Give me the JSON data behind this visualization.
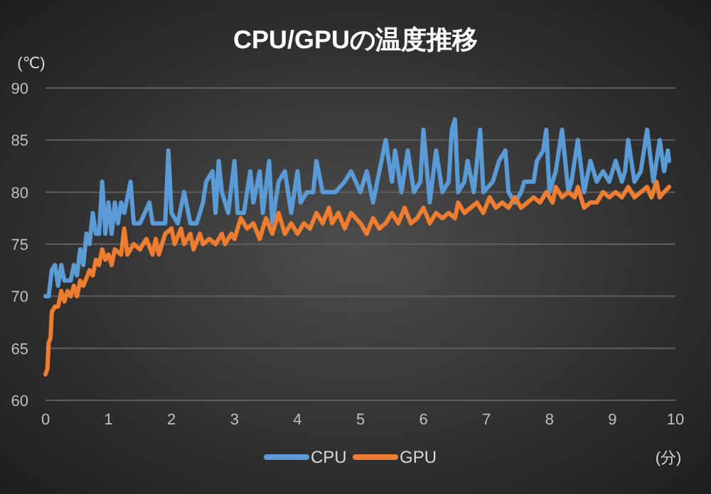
{
  "chart_data": {
    "type": "line",
    "title": "CPU/GPUの温度推移",
    "ylabel": "(℃)",
    "xlabel": "(分)",
    "xlim": [
      0,
      10
    ],
    "xticks": [
      0,
      1,
      2,
      3,
      4,
      5,
      6,
      7,
      8,
      9,
      10
    ],
    "ylim": [
      60,
      90
    ],
    "yticks": [
      60,
      65,
      70,
      75,
      80,
      85,
      90
    ],
    "grid": "y",
    "legend": "bottom",
    "line_style": "solid",
    "series": [
      {
        "name": "CPU",
        "color": "#5b9bd5",
        "x": [
          0,
          0.05,
          0.1,
          0.15,
          0.2,
          0.25,
          0.3,
          0.4,
          0.45,
          0.5,
          0.55,
          0.6,
          0.65,
          0.7,
          0.75,
          0.8,
          0.85,
          0.9,
          0.95,
          1.0,
          1.05,
          1.1,
          1.15,
          1.2,
          1.25,
          1.35,
          1.4,
          1.5,
          1.65,
          1.7,
          1.9,
          1.95,
          2.0,
          2.1,
          2.2,
          2.3,
          2.4,
          2.5,
          2.55,
          2.65,
          2.7,
          2.75,
          2.8,
          2.9,
          3.0,
          3.05,
          3.15,
          3.25,
          3.3,
          3.4,
          3.45,
          3.55,
          3.6,
          3.7,
          3.8,
          3.9,
          4.0,
          4.05,
          4.15,
          4.25,
          4.3,
          4.4,
          4.6,
          4.75,
          4.85,
          5.0,
          5.1,
          5.2,
          5.3,
          5.4,
          5.5,
          5.55,
          5.65,
          5.75,
          5.85,
          5.95,
          6.0,
          6.1,
          6.2,
          6.3,
          6.4,
          6.45,
          6.5,
          6.55,
          6.65,
          6.7,
          6.8,
          6.9,
          6.95,
          7.1,
          7.2,
          7.3,
          7.35,
          7.45,
          7.55,
          7.6,
          7.75,
          7.8,
          7.9,
          7.95,
          8.0,
          8.1,
          8.2,
          8.3,
          8.35,
          8.45,
          8.55,
          8.65,
          8.75,
          8.85,
          8.95,
          9.05,
          9.15,
          9.2,
          9.25,
          9.35,
          9.45,
          9.55,
          9.65,
          9.75,
          9.82,
          9.88,
          9.9
        ],
        "values": [
          70,
          70,
          72.5,
          73,
          71,
          73,
          71.5,
          71.5,
          73,
          72,
          74.5,
          73,
          76,
          75,
          78,
          76,
          76,
          81,
          76,
          79,
          76,
          79,
          77,
          79,
          78,
          81,
          77,
          77,
          79,
          77,
          77,
          84,
          78,
          77,
          80,
          77,
          77,
          79,
          81,
          82,
          78,
          83,
          80,
          78,
          83,
          78,
          78,
          82,
          79,
          82,
          78,
          83,
          77,
          81,
          82,
          78,
          82,
          79,
          80,
          80,
          83,
          80,
          80,
          81,
          82,
          80,
          82,
          79,
          82,
          85,
          81,
          84,
          80,
          84,
          80,
          81,
          86,
          79,
          84,
          80,
          81,
          86,
          87,
          80,
          81,
          83,
          80,
          86,
          80,
          81,
          83,
          84,
          80,
          79,
          80,
          81,
          81,
          83,
          84,
          86,
          80,
          82,
          86,
          80,
          81,
          85,
          80,
          83,
          81,
          82,
          81,
          83,
          81,
          82,
          85,
          81,
          82,
          86,
          81,
          85,
          82,
          84,
          83
        ]
      },
      {
        "name": "GPU",
        "color": "#ed7d31",
        "x": [
          0,
          0.03,
          0.05,
          0.08,
          0.1,
          0.15,
          0.2,
          0.25,
          0.3,
          0.35,
          0.4,
          0.45,
          0.5,
          0.55,
          0.6,
          0.7,
          0.75,
          0.8,
          0.85,
          0.9,
          0.95,
          1.0,
          1.05,
          1.1,
          1.2,
          1.25,
          1.3,
          1.4,
          1.5,
          1.6,
          1.7,
          1.75,
          1.8,
          1.9,
          2.0,
          2.05,
          2.15,
          2.2,
          2.3,
          2.35,
          2.45,
          2.5,
          2.6,
          2.7,
          2.8,
          2.85,
          2.95,
          3.0,
          3.1,
          3.2,
          3.3,
          3.4,
          3.5,
          3.6,
          3.7,
          3.8,
          3.9,
          4.0,
          4.1,
          4.2,
          4.3,
          4.4,
          4.5,
          4.55,
          4.65,
          4.75,
          4.85,
          5.0,
          5.1,
          5.2,
          5.3,
          5.4,
          5.5,
          5.6,
          5.7,
          5.8,
          5.9,
          6.0,
          6.1,
          6.2,
          6.3,
          6.4,
          6.5,
          6.55,
          6.65,
          6.75,
          6.85,
          6.95,
          7.05,
          7.15,
          7.25,
          7.35,
          7.45,
          7.55,
          7.65,
          7.75,
          7.85,
          7.95,
          8.05,
          8.1,
          8.2,
          8.3,
          8.4,
          8.45,
          8.55,
          8.65,
          8.75,
          8.85,
          8.95,
          9.05,
          9.15,
          9.25,
          9.35,
          9.45,
          9.55,
          9.62,
          9.7,
          9.75,
          9.82,
          9.9
        ],
        "values": [
          62.5,
          63,
          65.5,
          66,
          68.5,
          69,
          69,
          70.5,
          69.5,
          70.5,
          70,
          71,
          70,
          71.5,
          71,
          72.5,
          72,
          73.5,
          73,
          74.5,
          73.5,
          74,
          73,
          74.5,
          74,
          76.5,
          74,
          75,
          74.5,
          75.5,
          74,
          75.5,
          74,
          76,
          76.5,
          75,
          76.5,
          75,
          76,
          74.5,
          76,
          75,
          75.5,
          75,
          76,
          75,
          76,
          75.5,
          77.5,
          76.5,
          77,
          75.5,
          77.5,
          76,
          78,
          76,
          77,
          76,
          77,
          76.5,
          78,
          77,
          78.5,
          77,
          78,
          76.5,
          78,
          77,
          76,
          77.5,
          76.5,
          77,
          78,
          77,
          78.5,
          77,
          77.5,
          78.5,
          77,
          78,
          77.5,
          78,
          77.5,
          79,
          78,
          78.5,
          79,
          78,
          79.5,
          78.5,
          79,
          78.5,
          79.5,
          78.5,
          79,
          79.5,
          79,
          80,
          79,
          80.5,
          79.5,
          80,
          79.5,
          80.5,
          78.5,
          79,
          79,
          80,
          79.5,
          80,
          79.5,
          80.5,
          79.5,
          80,
          80.5,
          79.5,
          81,
          79.5,
          80,
          80.5
        ]
      }
    ]
  }
}
